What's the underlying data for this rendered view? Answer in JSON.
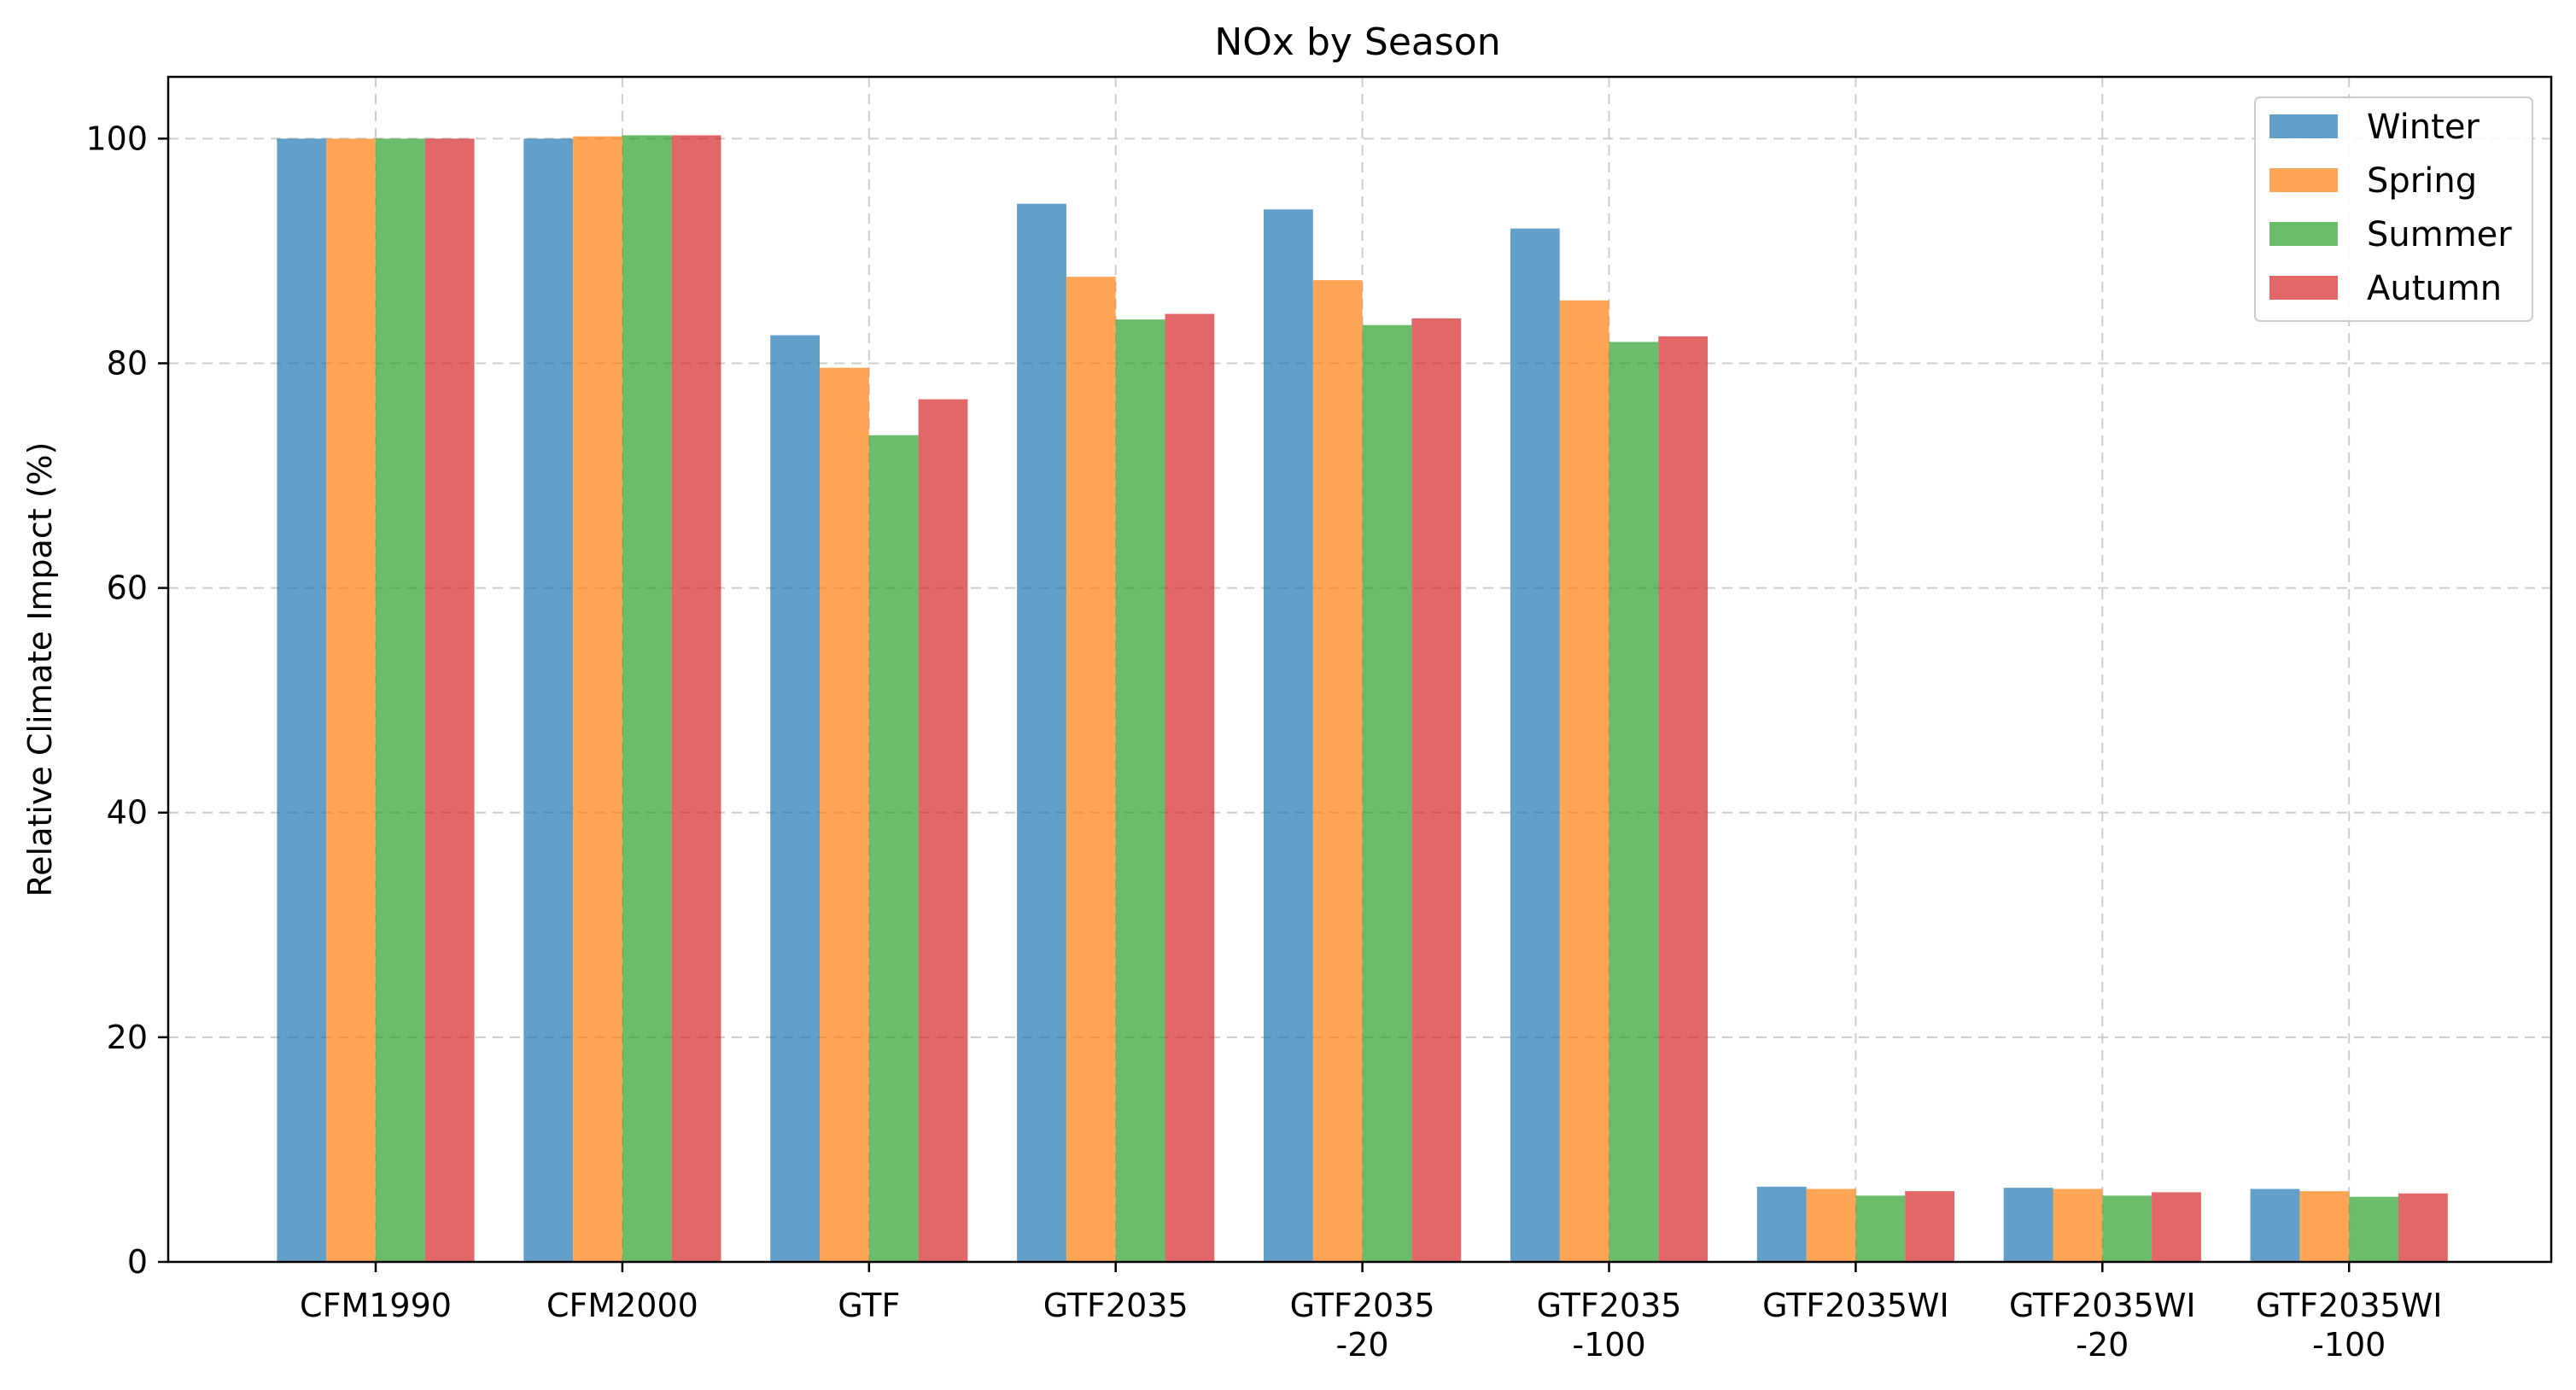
{
  "chart_data": {
    "type": "bar",
    "title": "NOx by Season",
    "xlabel": "",
    "ylabel": "Relative Climate Impact (%)",
    "ylim": [
      0,
      105.5
    ],
    "yticks": [
      0,
      20,
      40,
      60,
      80,
      100
    ],
    "grid": true,
    "legend_position": "top-right",
    "categories": [
      [
        "CFM1990"
      ],
      [
        "CFM2000"
      ],
      [
        "GTF"
      ],
      [
        "GTF2035"
      ],
      [
        "GTF2035",
        "-20"
      ],
      [
        "GTF2035",
        "-100"
      ],
      [
        "GTF2035WI"
      ],
      [
        "GTF2035WI",
        "-20"
      ],
      [
        "GTF2035WI",
        "-100"
      ]
    ],
    "series": [
      {
        "name": "Winter",
        "color": "#1f77b4",
        "values": [
          100,
          100,
          82.5,
          94.2,
          93.7,
          92.0,
          6.7,
          6.6,
          6.5
        ]
      },
      {
        "name": "Spring",
        "color": "#ff7f0e",
        "values": [
          100,
          100.2,
          79.6,
          87.7,
          87.4,
          85.6,
          6.5,
          6.5,
          6.3
        ]
      },
      {
        "name": "Summer",
        "color": "#2ca02c",
        "values": [
          100,
          100.3,
          73.6,
          83.9,
          83.4,
          81.9,
          5.9,
          5.9,
          5.8
        ]
      },
      {
        "name": "Autumn",
        "color": "#d62728",
        "values": [
          100,
          100.3,
          76.8,
          84.4,
          84.0,
          82.4,
          6.3,
          6.2,
          6.1
        ]
      }
    ]
  }
}
